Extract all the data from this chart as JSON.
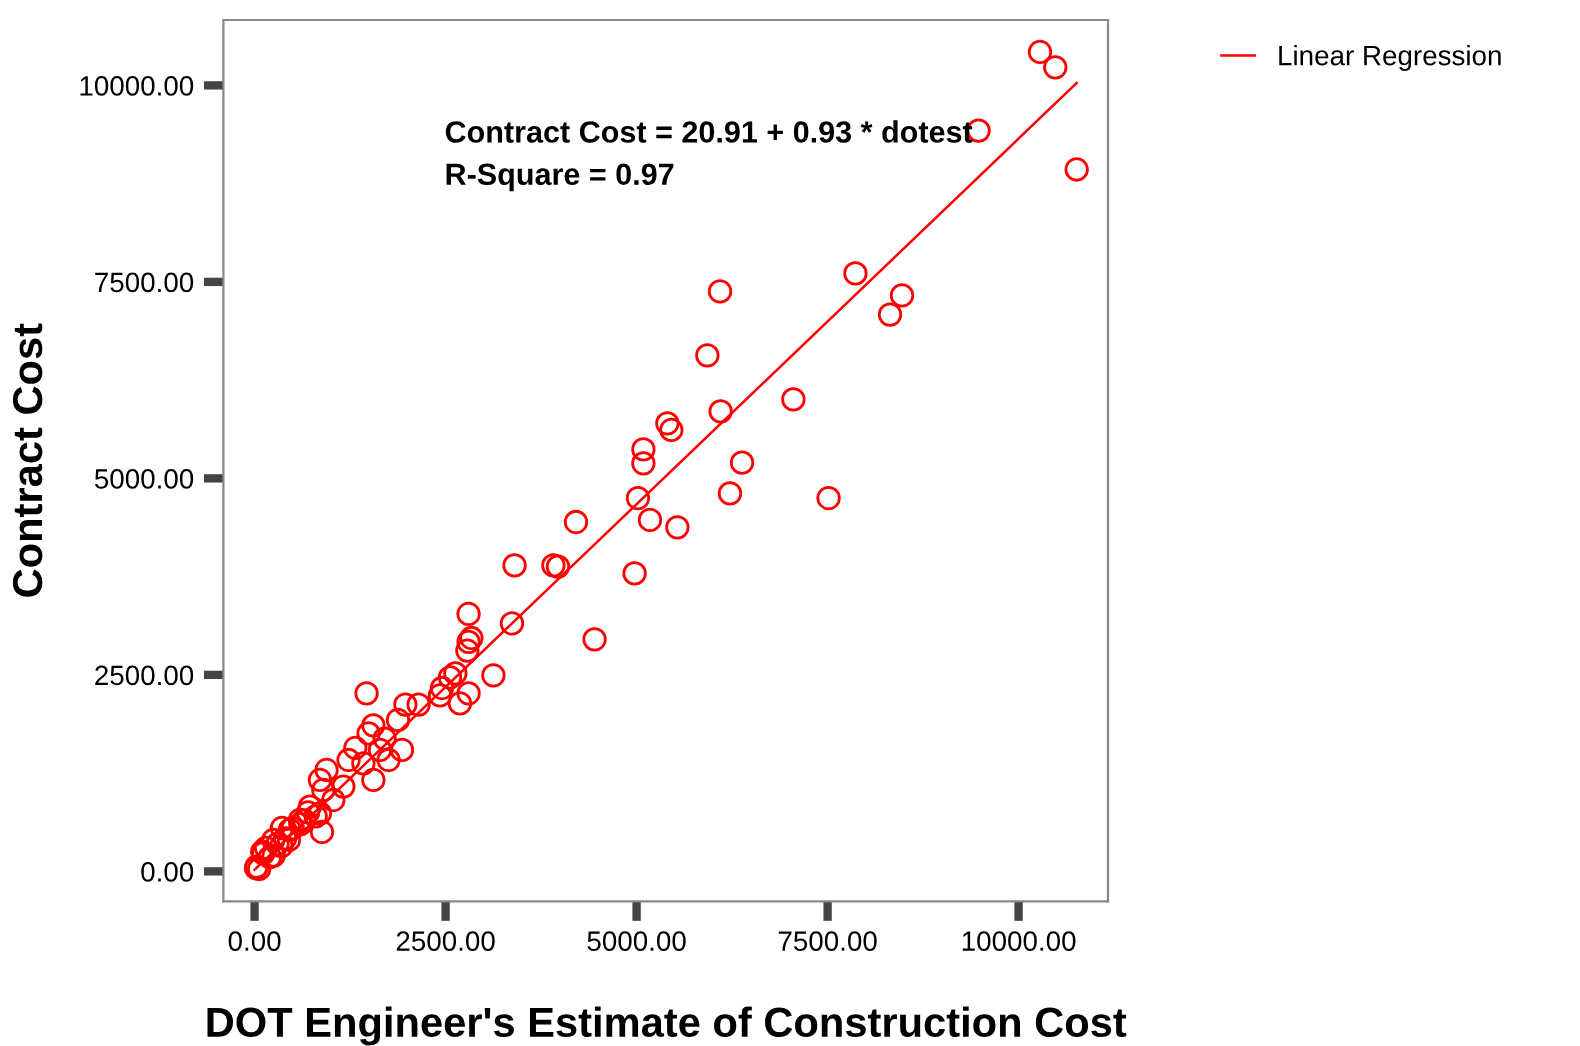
{
  "chart_data": {
    "type": "scatter",
    "xlabel": "DOT Engineer's Estimate of Construction Cost",
    "ylabel": "Contract Cost",
    "annotations": [
      "Contract Cost = 20.91 + 0.93 * dotest",
      "R-Square = 0.97"
    ],
    "xlim": [
      -408,
      11170
    ],
    "ylim": [
      -382,
      10832
    ],
    "xticks": [
      {
        "value": 0,
        "label": "0.00"
      },
      {
        "value": 2500,
        "label": "2500.00"
      },
      {
        "value": 5000,
        "label": "5000.00"
      },
      {
        "value": 7500,
        "label": "7500.00"
      },
      {
        "value": 10000,
        "label": "10000.00"
      }
    ],
    "yticks": [
      {
        "value": 0,
        "label": "0.00"
      },
      {
        "value": 2500,
        "label": "2500.00"
      },
      {
        "value": 5000,
        "label": "5000.00"
      },
      {
        "value": 7500,
        "label": "7500.00"
      },
      {
        "value": 10000,
        "label": "10000.00"
      }
    ],
    "grid": false,
    "legend": "top right",
    "marker": "circle",
    "series": [
      {
        "color": "#ff0000",
        "x": [
          10280,
          10480,
          9476,
          10760,
          7864,
          6092,
          8474,
          8317,
          5926,
          7052,
          6100,
          5403,
          5455,
          5089,
          5089,
          6380,
          5018,
          6222,
          7513,
          5175,
          4207,
          5534,
          4974,
          3403,
          3911,
          3971,
          4450,
          3369,
          2801,
          2838,
          2801,
          2785,
          3126,
          1466,
          2628,
          2558,
          2453,
          2427,
          2688,
          2801,
          1974,
          2147,
          1877,
          1555,
          1492,
          1702,
          1641,
          1929,
          1754,
          1319,
          1230,
          1424,
          1555,
          942,
          856,
          900,
          1162,
          1031,
          856,
          725,
          594,
          882,
          463,
          359,
          246,
          115,
          26,
          100,
          150,
          200,
          300,
          400,
          500,
          600,
          700,
          800,
          60,
          20,
          250,
          350,
          450,
          650
        ],
        "values": [
          10425,
          10230,
          9425,
          8930,
          7608,
          7379,
          7328,
          7084,
          6565,
          6005,
          5852,
          5700,
          5616,
          5369,
          5191,
          5200,
          4750,
          4809,
          4750,
          4471,
          4445,
          4377,
          3791,
          3893,
          3893,
          3878,
          2952,
          3155,
          3275,
          2969,
          2919,
          2809,
          2494,
          2265,
          2519,
          2468,
          2333,
          2239,
          2137,
          2265,
          2122,
          2122,
          1926,
          1858,
          1756,
          1690,
          1545,
          1545,
          1417,
          1570,
          1417,
          1374,
          1163,
          1290,
          1163,
          1036,
          1079,
          908,
          738,
          824,
          654,
          501,
          527,
          552,
          399,
          229,
          61,
          250,
          300,
          180,
          350,
          420,
          550,
          600,
          750,
          700,
          30,
          40,
          200,
          320,
          400,
          650
        ]
      },
      {
        "type": "line",
        "name": "Linear Regression",
        "color": "#ff0000",
        "line_style": "solid",
        "marker": "none",
        "x": [
          0,
          10760
        ],
        "values": [
          20,
          10030
        ]
      }
    ]
  }
}
